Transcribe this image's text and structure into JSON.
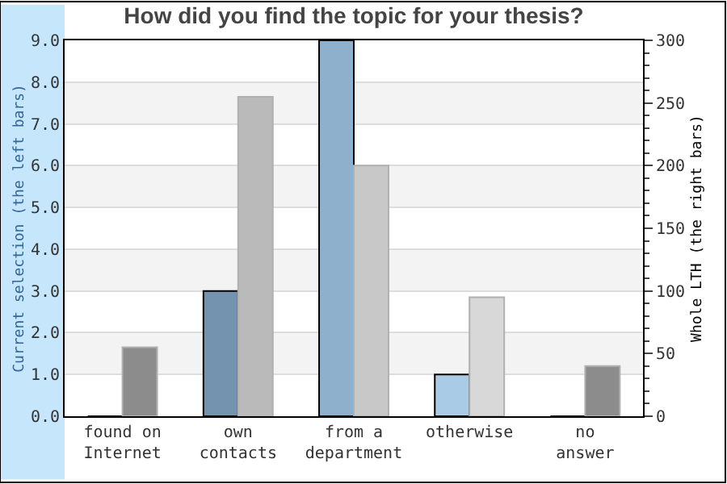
{
  "chart_data": {
    "type": "bar",
    "title": "How did you find the topic for your thesis?",
    "categories": [
      "found on\nInternet",
      "own\ncontacts",
      "from a\ndepartment",
      "otherwise",
      "no\nanswer"
    ],
    "ylabel": "Current selection (the left bars)",
    "y2label": "Whole LTH (the right bars)",
    "series": [
      {
        "colors": [
          "#7393ae",
          "#7393ae",
          "#8fb0cc",
          "#a9cbe6",
          "#a9cbe6"
        ],
        "values": [
          0,
          3,
          9,
          1,
          0
        ]
      },
      {
        "colors": [
          "#8c8c8c",
          "#bababa",
          "#c8c8c8",
          "#d8d8d8",
          "#8c8c8c"
        ],
        "values": [
          55,
          255,
          200,
          95,
          40
        ],
        "axis": "y2"
      }
    ],
    "ylim": [
      0,
      9
    ],
    "yticks": [
      {
        "value": 0,
        "label": "0.0"
      },
      {
        "value": 1,
        "label": "1.0"
      },
      {
        "value": 2,
        "label": "2.0"
      },
      {
        "value": 3,
        "label": "3.0"
      },
      {
        "value": 4,
        "label": "4.0"
      },
      {
        "value": 5,
        "label": "5.0"
      },
      {
        "value": 6,
        "label": "6.0"
      },
      {
        "value": 7,
        "label": "7.0"
      },
      {
        "value": 8,
        "label": "8.0"
      },
      {
        "value": 9,
        "label": "9.0"
      }
    ],
    "y2lim": [
      0,
      300
    ],
    "y2ticks": [
      0,
      50,
      100,
      150,
      200,
      250,
      300
    ],
    "grid": "y"
  }
}
